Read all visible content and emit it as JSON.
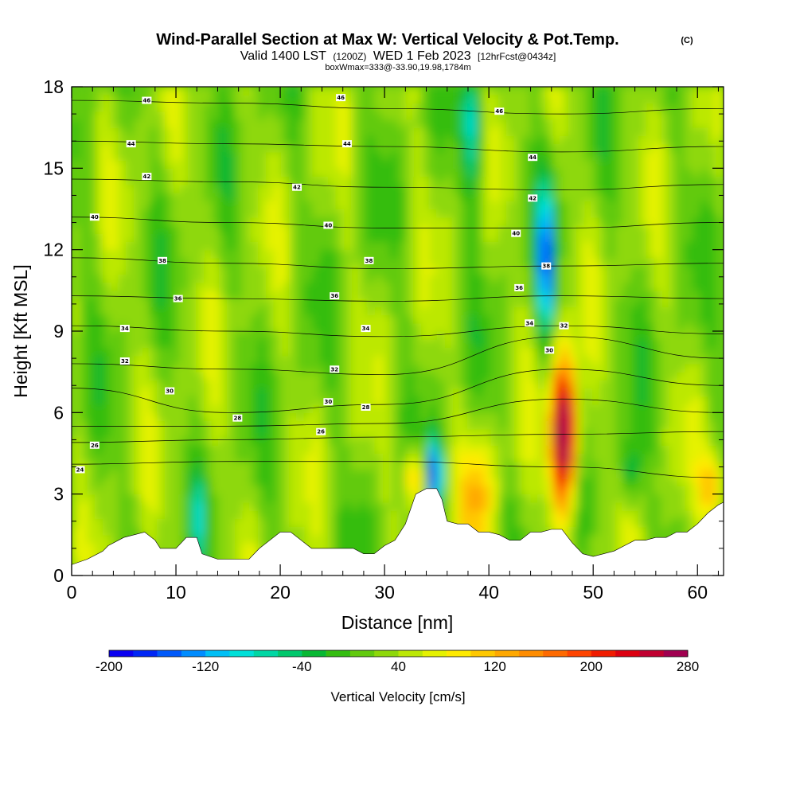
{
  "chart_data": {
    "type": "heatmap",
    "title": "Wind-Parallel Section at Max W: Vertical Velocity & Pot.Temp.",
    "title_mark": "(C)",
    "subtitle": {
      "valid": "Valid 1400 LST",
      "utc": "(1200Z)",
      "date": "WED 1 Feb 2023",
      "forecast": "[12hrFcst@0434z]"
    },
    "subtitle2": "boxWmax=333@-33.90,19.98,1784m",
    "xlabel": "Distance [nm]",
    "ylabel": "Height [Kft MSL]",
    "xlim": [
      0,
      62.5
    ],
    "ylim": [
      0,
      18
    ],
    "xticks": [
      0,
      10,
      20,
      30,
      40,
      50,
      60
    ],
    "yticks": [
      0,
      3,
      6,
      9,
      12,
      15,
      18
    ],
    "colorbar": {
      "label": "Vertical Velocity [cm/s]",
      "min": -200,
      "max": 280,
      "step": 20,
      "tick_values": [
        -200,
        -120,
        -40,
        40,
        120,
        200,
        280
      ],
      "tick_labels": [
        "-200",
        "-120",
        "-40",
        "40",
        "120",
        "200",
        "280"
      ],
      "colors": [
        "#0a00f0",
        "#0026f5",
        "#0059fa",
        "#008cff",
        "#00bff5",
        "#00e0d8",
        "#00d7a4",
        "#00c86c",
        "#07b833",
        "#34bd10",
        "#62ca0e",
        "#8ed80a",
        "#bce805",
        "#e5f200",
        "#ffea00",
        "#ffc800",
        "#ffa800",
        "#ff8c00",
        "#ff6a00",
        "#ff4400",
        "#f01c00",
        "#dc0010",
        "#c00030",
        "#a00050"
      ]
    },
    "updraft_peak_w": 280,
    "downdraft_peak_w": -200,
    "terrain_profile": [
      [
        0,
        0.4
      ],
      [
        1.5,
        0.6
      ],
      [
        3,
        0.9
      ],
      [
        3.5,
        1.1
      ],
      [
        5,
        1.4
      ],
      [
        7,
        1.6
      ],
      [
        8,
        1.3
      ],
      [
        8.5,
        1.0
      ],
      [
        10,
        1.0
      ],
      [
        10.5,
        1.2
      ],
      [
        11,
        1.4
      ],
      [
        12,
        1.4
      ],
      [
        12.5,
        0.8
      ],
      [
        14,
        0.6
      ],
      [
        15,
        0.6
      ],
      [
        16,
        0.6
      ],
      [
        17,
        0.6
      ],
      [
        18,
        1.0
      ],
      [
        19,
        1.3
      ],
      [
        20,
        1.6
      ],
      [
        21,
        1.6
      ],
      [
        22,
        1.3
      ],
      [
        23,
        1.0
      ],
      [
        25,
        1.0
      ],
      [
        27,
        1.0
      ],
      [
        28,
        0.8
      ],
      [
        29,
        0.8
      ],
      [
        30,
        1.1
      ],
      [
        31,
        1.3
      ],
      [
        32,
        1.9
      ],
      [
        33,
        3.0
      ],
      [
        34,
        3.2
      ],
      [
        35,
        3.2
      ],
      [
        35.5,
        2.8
      ],
      [
        36,
        2.0
      ],
      [
        37,
        1.9
      ],
      [
        38,
        1.9
      ],
      [
        39,
        1.6
      ],
      [
        40,
        1.6
      ],
      [
        41,
        1.5
      ],
      [
        42,
        1.3
      ],
      [
        43,
        1.3
      ],
      [
        44,
        1.6
      ],
      [
        45,
        1.6
      ],
      [
        46,
        1.7
      ],
      [
        47,
        1.7
      ],
      [
        48,
        1.2
      ],
      [
        49,
        0.8
      ],
      [
        50,
        0.7
      ],
      [
        51,
        0.8
      ],
      [
        52,
        0.9
      ],
      [
        53,
        1.1
      ],
      [
        54,
        1.3
      ],
      [
        55,
        1.3
      ],
      [
        56,
        1.4
      ],
      [
        57,
        1.4
      ],
      [
        58,
        1.6
      ],
      [
        59,
        1.6
      ],
      [
        60,
        1.9
      ],
      [
        61,
        2.3
      ],
      [
        62,
        2.6
      ],
      [
        62.5,
        2.7
      ]
    ],
    "theta_contours": [
      {
        "value": 24,
        "heights": [
          4.1,
          4.2,
          4.2,
          4.0,
          3.6
        ]
      },
      {
        "value": 26,
        "heights": [
          4.9,
          5.0,
          5.1,
          5.2,
          5.3
        ]
      },
      {
        "value": 28,
        "heights": [
          5.5,
          5.5,
          5.6,
          6.5,
          6.0
        ]
      },
      {
        "value": 30,
        "heights": [
          6.9,
          6.0,
          6.3,
          7.6,
          7.0
        ]
      },
      {
        "value": 32,
        "heights": [
          7.8,
          7.6,
          7.4,
          8.8,
          8.0
        ]
      },
      {
        "value": 34,
        "heights": [
          9.2,
          9.0,
          8.8,
          9.2,
          8.9
        ]
      },
      {
        "value": 36,
        "heights": [
          10.3,
          10.2,
          10.1,
          10.3,
          10.2
        ]
      },
      {
        "value": 38,
        "heights": [
          11.7,
          11.5,
          11.3,
          11.4,
          11.5
        ]
      },
      {
        "value": 40,
        "heights": [
          13.2,
          13.0,
          12.8,
          12.8,
          13.0
        ]
      },
      {
        "value": 42,
        "heights": [
          14.6,
          14.5,
          14.3,
          14.2,
          14.4
        ]
      },
      {
        "value": 44,
        "heights": [
          16.0,
          15.9,
          15.8,
          15.6,
          15.8
        ]
      },
      {
        "value": 46,
        "heights": [
          17.5,
          17.4,
          17.2,
          17.0,
          17.2
        ]
      }
    ],
    "theta_contour_x": [
      0,
      15,
      30,
      47,
      62.5
    ],
    "contour_labels": [
      {
        "text": "46",
        "x": 7.2,
        "y": 17.5
      },
      {
        "text": "46",
        "x": 25.8,
        "y": 17.6
      },
      {
        "text": "46",
        "x": 41.0,
        "y": 17.1
      },
      {
        "text": "44",
        "x": 5.7,
        "y": 15.9
      },
      {
        "text": "44",
        "x": 26.4,
        "y": 15.9
      },
      {
        "text": "44",
        "x": 44.2,
        "y": 15.4
      },
      {
        "text": "42",
        "x": 7.2,
        "y": 14.7
      },
      {
        "text": "42",
        "x": 21.6,
        "y": 14.3
      },
      {
        "text": "42",
        "x": 44.2,
        "y": 13.9
      },
      {
        "text": "40",
        "x": 2.2,
        "y": 13.2
      },
      {
        "text": "40",
        "x": 24.6,
        "y": 12.9
      },
      {
        "text": "40",
        "x": 42.6,
        "y": 12.6
      },
      {
        "text": "38",
        "x": 8.7,
        "y": 11.6
      },
      {
        "text": "38",
        "x": 28.5,
        "y": 11.6
      },
      {
        "text": "38",
        "x": 45.5,
        "y": 11.4
      },
      {
        "text": "36",
        "x": 10.2,
        "y": 10.2
      },
      {
        "text": "36",
        "x": 25.2,
        "y": 10.3
      },
      {
        "text": "36",
        "x": 42.9,
        "y": 10.6
      },
      {
        "text": "34",
        "x": 5.1,
        "y": 9.1
      },
      {
        "text": "34",
        "x": 28.2,
        "y": 9.1
      },
      {
        "text": "34",
        "x": 43.9,
        "y": 9.3
      },
      {
        "text": "32",
        "x": 5.1,
        "y": 7.9
      },
      {
        "text": "32",
        "x": 25.2,
        "y": 7.6
      },
      {
        "text": "32",
        "x": 47.2,
        "y": 9.2
      },
      {
        "text": "30",
        "x": 9.4,
        "y": 6.8
      },
      {
        "text": "30",
        "x": 24.6,
        "y": 6.4
      },
      {
        "text": "30",
        "x": 45.8,
        "y": 8.3
      },
      {
        "text": "28",
        "x": 15.9,
        "y": 5.8
      },
      {
        "text": "28",
        "x": 28.2,
        "y": 6.2
      },
      {
        "text": "26",
        "x": 2.2,
        "y": 4.8
      },
      {
        "text": "26",
        "x": 23.9,
        "y": 5.3
      },
      {
        "text": "24",
        "x": 0.8,
        "y": 3.9
      }
    ]
  }
}
